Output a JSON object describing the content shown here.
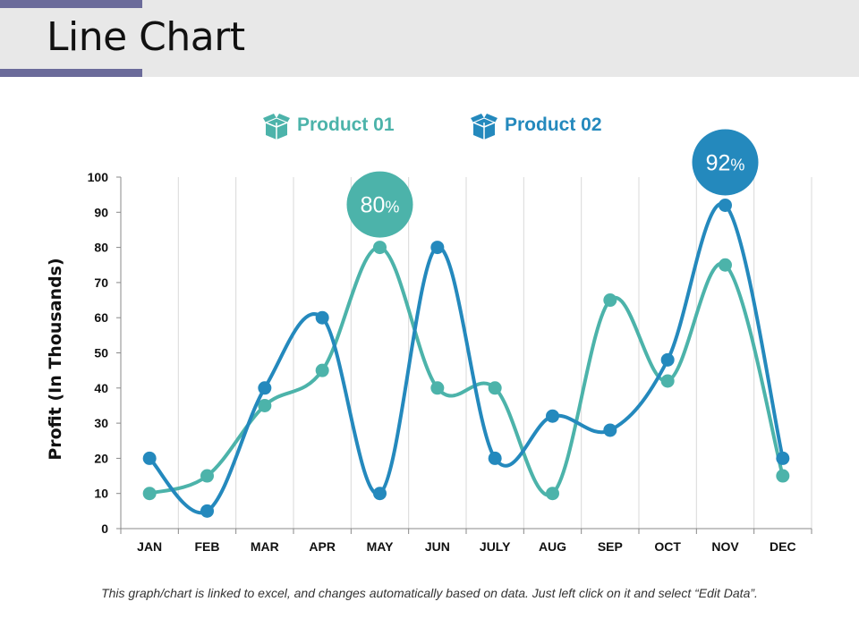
{
  "page": {
    "title": "Line Chart",
    "footnote": "This graph/chart is linked to excel, and changes automatically based on data. Just left click on it and select “Edit Data”."
  },
  "legend": {
    "items": [
      {
        "label": "Product 01",
        "color": "#4cb3aa",
        "icon": "box-icon"
      },
      {
        "label": "Product 02",
        "color": "#2489bd",
        "icon": "box-icon"
      }
    ]
  },
  "chart_data": {
    "type": "line",
    "title": "",
    "xlabel": "",
    "ylabel": "Profit (In Thousands)",
    "categories": [
      "JAN",
      "FEB",
      "MAR",
      "APR",
      "MAY",
      "JUN",
      "JULY",
      "AUG",
      "SEP",
      "OCT",
      "NOV",
      "DEC"
    ],
    "ylim": [
      0,
      100
    ],
    "yticks": [
      0,
      10,
      20,
      30,
      40,
      50,
      60,
      70,
      80,
      90,
      100
    ],
    "grid": "vertical",
    "series": [
      {
        "name": "Product 01",
        "color": "#4cb3aa",
        "values": [
          10,
          15,
          35,
          45,
          80,
          40,
          40,
          10,
          65,
          42,
          75,
          15
        ]
      },
      {
        "name": "Product 02",
        "color": "#2489bd",
        "values": [
          20,
          5,
          40,
          60,
          10,
          80,
          20,
          32,
          28,
          48,
          92,
          20
        ]
      }
    ],
    "callouts": [
      {
        "series": "Product 01",
        "category": "MAY",
        "value": "80",
        "suffix": "%",
        "color": "#4cb3aa"
      },
      {
        "series": "Product 02",
        "category": "NOV",
        "value": "92",
        "suffix": "%",
        "color": "#2489bd"
      }
    ]
  }
}
